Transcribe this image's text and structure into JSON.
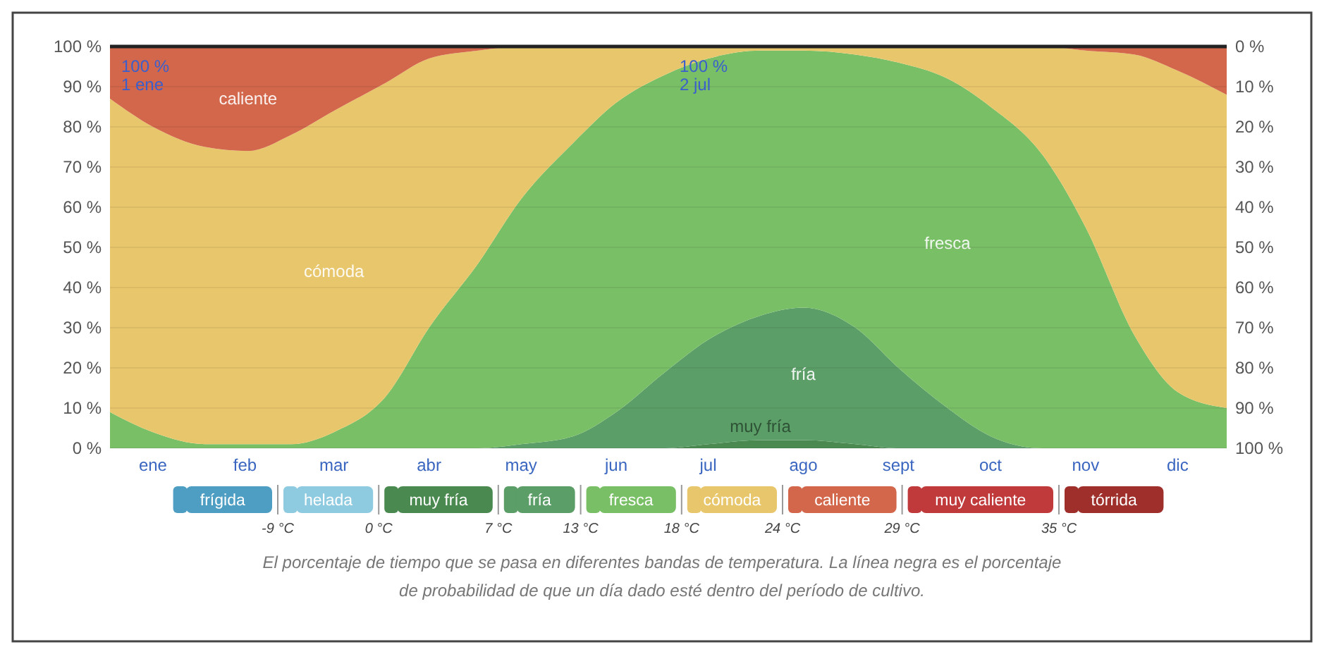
{
  "chart_data": {
    "type": "area",
    "stacked": true,
    "x": [
      "--01-01",
      "--01-15",
      "--02-01",
      "--02-15",
      "--03-01",
      "--03-15",
      "--04-01",
      "--04-15",
      "--05-01",
      "--05-15",
      "--06-01",
      "--06-15",
      "--07-01",
      "--07-15",
      "--08-01",
      "--08-15",
      "--09-01",
      "--09-15",
      "--10-01",
      "--10-15",
      "--11-01",
      "--11-15",
      "--12-01",
      "--12-15",
      "--12-31"
    ],
    "xlim": [
      "--01-01",
      "--12-31"
    ],
    "xticks": [
      {
        "value": "--01-15",
        "label": "ene"
      },
      {
        "value": "--02-14",
        "label": "feb"
      },
      {
        "value": "--03-15",
        "label": "mar"
      },
      {
        "value": "--04-15",
        "label": "abr"
      },
      {
        "value": "--05-15",
        "label": "may"
      },
      {
        "value": "--06-15",
        "label": "jun"
      },
      {
        "value": "--07-15",
        "label": "jul"
      },
      {
        "value": "--08-15",
        "label": "ago"
      },
      {
        "value": "--09-15",
        "label": "sept"
      },
      {
        "value": "--10-15",
        "label": "oct"
      },
      {
        "value": "--11-15",
        "label": "nov"
      },
      {
        "value": "--12-15",
        "label": "dic"
      }
    ],
    "ylim": [
      0,
      100
    ],
    "yticks": [
      {
        "value": 0,
        "label": "0 %"
      },
      {
        "value": 10,
        "label": "10 %"
      },
      {
        "value": 20,
        "label": "20 %"
      },
      {
        "value": 30,
        "label": "30 %"
      },
      {
        "value": 40,
        "label": "40 %"
      },
      {
        "value": 50,
        "label": "50 %"
      },
      {
        "value": 60,
        "label": "60 %"
      },
      {
        "value": 70,
        "label": "70 %"
      },
      {
        "value": 80,
        "label": "80 %"
      },
      {
        "value": 90,
        "label": "90 %"
      },
      {
        "value": 100,
        "label": "100 %"
      }
    ],
    "y2lim": [
      100,
      0
    ],
    "y2ticks": [
      {
        "value": 0,
        "label": "0 %"
      },
      {
        "value": 10,
        "label": "10 %"
      },
      {
        "value": 20,
        "label": "20 %"
      },
      {
        "value": 30,
        "label": "30 %"
      },
      {
        "value": 40,
        "label": "40 %"
      },
      {
        "value": 50,
        "label": "50 %"
      },
      {
        "value": 60,
        "label": "60 %"
      },
      {
        "value": 70,
        "label": "70 %"
      },
      {
        "value": 80,
        "label": "80 %"
      },
      {
        "value": 90,
        "label": "90 %"
      },
      {
        "value": 100,
        "label": "100 %"
      }
    ],
    "grid": "y",
    "legend": "bottom",
    "series": [
      {
        "name": "frígida",
        "color": "#4e9ec4",
        "values": [
          null,
          null,
          null,
          null,
          null,
          null,
          null,
          null,
          null,
          null,
          null,
          null,
          null,
          null,
          null,
          null,
          null,
          null,
          null,
          null,
          null,
          null,
          null,
          null,
          null
        ]
      },
      {
        "name": "helada",
        "color": "#8fcbe0",
        "values": [
          null,
          null,
          null,
          null,
          null,
          null,
          null,
          null,
          null,
          null,
          null,
          null,
          null,
          null,
          null,
          null,
          null,
          null,
          null,
          null,
          null,
          null,
          null,
          null,
          null
        ]
      },
      {
        "name": "muy fría",
        "color": "#4a8a50",
        "values": [
          0,
          0,
          0,
          0,
          0,
          0,
          0,
          0,
          0,
          0,
          0,
          0,
          0,
          1,
          2,
          2,
          1,
          0,
          0,
          0,
          0,
          0,
          0,
          0,
          0
        ]
      },
      {
        "name": "fría",
        "color": "#5c9e68",
        "values": [
          0,
          0,
          0,
          0,
          0,
          0,
          0,
          0,
          0,
          1,
          3,
          9,
          19,
          26,
          31,
          33,
          29,
          20,
          10,
          3,
          0,
          0,
          0,
          0,
          0
        ]
      },
      {
        "name": "fresca",
        "color": "#79bf66",
        "values": [
          9,
          4,
          1,
          1,
          1,
          4,
          13,
          30,
          46,
          61,
          73,
          77,
          74,
          70,
          66,
          64,
          68,
          76,
          82,
          82,
          73,
          55,
          28,
          14,
          10
        ]
      },
      {
        "name": "cómoda",
        "color": "#e8c66b",
        "values": [
          78,
          76,
          74,
          73,
          77,
          80,
          78,
          67,
          53,
          38,
          24,
          14,
          7,
          3,
          1,
          1,
          2,
          4,
          8,
          15,
          27,
          44,
          70,
          80,
          78
        ]
      },
      {
        "name": "caliente",
        "color": "#d3674b",
        "values": [
          13,
          20,
          25,
          26,
          22,
          16,
          9,
          3,
          1,
          0,
          0,
          0,
          0,
          0,
          0,
          0,
          0,
          0,
          0,
          0,
          0,
          1,
          2,
          6,
          12
        ]
      },
      {
        "name": "muy caliente",
        "color": "#c03a3c",
        "values": [
          null,
          null,
          null,
          null,
          null,
          null,
          null,
          null,
          null,
          null,
          null,
          null,
          null,
          null,
          null,
          null,
          null,
          null,
          null,
          null,
          null,
          null,
          null,
          null,
          null
        ]
      },
      {
        "name": "tórrida",
        "color": "#9e2f2a",
        "values": [
          null,
          null,
          null,
          null,
          null,
          null,
          null,
          null,
          null,
          null,
          null,
          null,
          null,
          null,
          null,
          null,
          null,
          null,
          null,
          null,
          null,
          null,
          null,
          null,
          null
        ]
      }
    ],
    "ref_lines": [
      {
        "axis": "y",
        "value": 100,
        "color": "#222222"
      }
    ],
    "annotations": [
      {
        "text": "100 %\n1 ene",
        "x": "--01-01",
        "y": 100
      },
      {
        "text": "100 %\n2 jul",
        "x": "--07-02",
        "y": 100
      },
      "-9 °C",
      "0 °C",
      "7 °C",
      "13 °C",
      "18 °C",
      "24 °C",
      "29 °C",
      "35 °C",
      "El porcentaje de tiempo que se pasa en diferentes bandas de temperatura. La línea negra es el porcentaje de probabilidad de que un día dado esté dentro del período de cultivo."
    ]
  }
}
